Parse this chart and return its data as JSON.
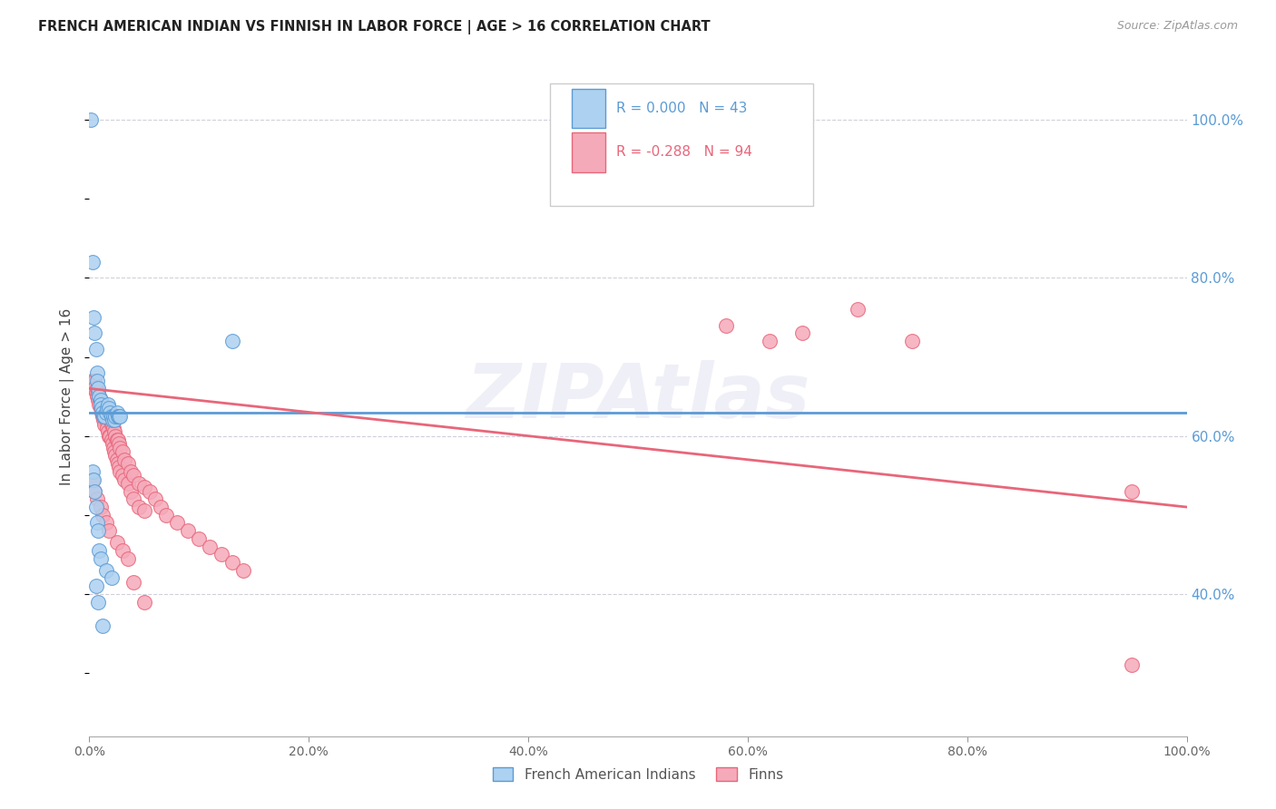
{
  "title": "FRENCH AMERICAN INDIAN VS FINNISH IN LABOR FORCE | AGE > 16 CORRELATION CHART",
  "source": "Source: ZipAtlas.com",
  "ylabel": "In Labor Force | Age > 16",
  "ytick_labels": [
    "40.0%",
    "60.0%",
    "80.0%",
    "100.0%"
  ],
  "ytick_values": [
    0.4,
    0.6,
    0.8,
    1.0
  ],
  "watermark": "ZIPAtlas",
  "legend": {
    "blue_r": "R = 0.000",
    "blue_n": "N = 43",
    "pink_r": "R = -0.288",
    "pink_n": "N = 94"
  },
  "blue_scatter_x": [
    0.001,
    0.13,
    0.003,
    0.004,
    0.005,
    0.006,
    0.007,
    0.007,
    0.008,
    0.009,
    0.01,
    0.01,
    0.011,
    0.012,
    0.013,
    0.014,
    0.015,
    0.016,
    0.017,
    0.018,
    0.019,
    0.02,
    0.021,
    0.022,
    0.023,
    0.024,
    0.025,
    0.026,
    0.027,
    0.028,
    0.003,
    0.004,
    0.005,
    0.006,
    0.007,
    0.008,
    0.009,
    0.01,
    0.015,
    0.02,
    0.006,
    0.008,
    0.012
  ],
  "blue_scatter_y": [
    1.0,
    0.72,
    0.82,
    0.75,
    0.73,
    0.71,
    0.68,
    0.67,
    0.66,
    0.65,
    0.645,
    0.64,
    0.635,
    0.63,
    0.625,
    0.625,
    0.63,
    0.635,
    0.64,
    0.635,
    0.63,
    0.625,
    0.62,
    0.625,
    0.62,
    0.625,
    0.63,
    0.625,
    0.625,
    0.625,
    0.555,
    0.545,
    0.53,
    0.51,
    0.49,
    0.48,
    0.455,
    0.445,
    0.43,
    0.42,
    0.41,
    0.39,
    0.36
  ],
  "pink_scatter_x": [
    0.002,
    0.003,
    0.004,
    0.005,
    0.005,
    0.006,
    0.007,
    0.007,
    0.008,
    0.008,
    0.009,
    0.009,
    0.01,
    0.01,
    0.011,
    0.011,
    0.012,
    0.012,
    0.013,
    0.013,
    0.014,
    0.014,
    0.015,
    0.015,
    0.016,
    0.016,
    0.017,
    0.017,
    0.018,
    0.018,
    0.019,
    0.019,
    0.02,
    0.02,
    0.021,
    0.021,
    0.022,
    0.022,
    0.023,
    0.023,
    0.024,
    0.024,
    0.025,
    0.025,
    0.026,
    0.026,
    0.027,
    0.027,
    0.028,
    0.028,
    0.03,
    0.03,
    0.032,
    0.032,
    0.035,
    0.035,
    0.038,
    0.038,
    0.04,
    0.04,
    0.045,
    0.045,
    0.05,
    0.05,
    0.055,
    0.06,
    0.065,
    0.07,
    0.08,
    0.09,
    0.1,
    0.11,
    0.12,
    0.13,
    0.14,
    0.58,
    0.62,
    0.65,
    0.7,
    0.75,
    0.003,
    0.005,
    0.007,
    0.01,
    0.012,
    0.015,
    0.018,
    0.025,
    0.03,
    0.035,
    0.04,
    0.05,
    0.95,
    0.95
  ],
  "pink_scatter_y": [
    0.67,
    0.665,
    0.66,
    0.67,
    0.66,
    0.655,
    0.66,
    0.65,
    0.655,
    0.645,
    0.65,
    0.64,
    0.645,
    0.635,
    0.64,
    0.63,
    0.64,
    0.625,
    0.635,
    0.62,
    0.63,
    0.615,
    0.635,
    0.62,
    0.63,
    0.61,
    0.625,
    0.605,
    0.625,
    0.6,
    0.62,
    0.6,
    0.615,
    0.595,
    0.615,
    0.59,
    0.61,
    0.585,
    0.605,
    0.58,
    0.6,
    0.575,
    0.595,
    0.57,
    0.595,
    0.565,
    0.59,
    0.56,
    0.585,
    0.555,
    0.58,
    0.55,
    0.57,
    0.545,
    0.565,
    0.54,
    0.555,
    0.53,
    0.55,
    0.52,
    0.54,
    0.51,
    0.535,
    0.505,
    0.53,
    0.52,
    0.51,
    0.5,
    0.49,
    0.48,
    0.47,
    0.46,
    0.45,
    0.44,
    0.43,
    0.74,
    0.72,
    0.73,
    0.76,
    0.72,
    0.545,
    0.53,
    0.52,
    0.51,
    0.5,
    0.49,
    0.48,
    0.465,
    0.455,
    0.445,
    0.415,
    0.39,
    0.31,
    0.53
  ],
  "blue_line_x": [
    0.0,
    1.0
  ],
  "blue_line_y": [
    0.63,
    0.63
  ],
  "pink_line_x": [
    0.0,
    1.0
  ],
  "pink_line_y": [
    0.66,
    0.51
  ],
  "blue_color": "#5B9BD5",
  "pink_color": "#E8667A",
  "blue_fill": "#ADD1F0",
  "pink_fill": "#F5AABA",
  "grid_color": "#BBBBCC",
  "right_label_color": "#5B9BD5",
  "xlim": [
    0.0,
    1.0
  ],
  "ylim": [
    0.22,
    1.08
  ],
  "xticks": [
    0.0,
    0.2,
    0.4,
    0.6,
    0.8,
    1.0
  ],
  "xtick_labels": [
    "0.0%",
    "20.0%",
    "40.0%",
    "60.0%",
    "80.0%",
    "100.0%"
  ]
}
